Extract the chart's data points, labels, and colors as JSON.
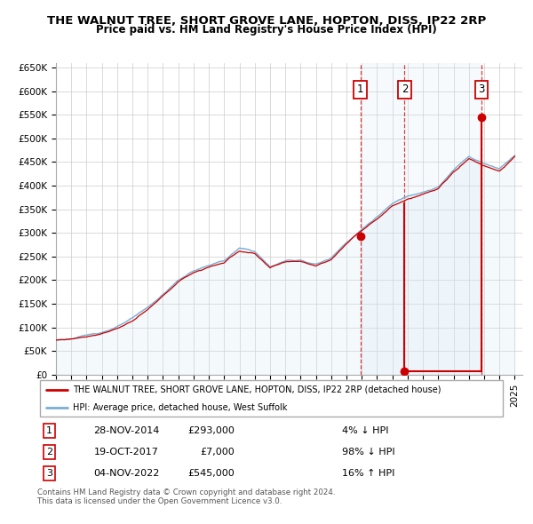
{
  "title": "THE WALNUT TREE, SHORT GROVE LANE, HOPTON, DISS, IP22 2RP",
  "subtitle": "Price paid vs. HM Land Registry's House Price Index (HPI)",
  "ylim": [
    0,
    660000
  ],
  "yticks": [
    0,
    50000,
    100000,
    150000,
    200000,
    250000,
    300000,
    350000,
    400000,
    450000,
    500000,
    550000,
    600000,
    650000
  ],
  "ytick_labels": [
    "£0",
    "£50K",
    "£100K",
    "£150K",
    "£200K",
    "£250K",
    "£300K",
    "£350K",
    "£400K",
    "£450K",
    "£500K",
    "£550K",
    "£600K",
    "£650K"
  ],
  "xlim_start": 1995.0,
  "xlim_end": 2025.5,
  "transaction_line_color": "#cc0000",
  "hpi_line_color": "#7aafd4",
  "hpi_fill_color": "#d6e8f5",
  "background_color": "#ffffff",
  "grid_color": "#cccccc",
  "transactions": [
    {
      "num": 1,
      "date_label": "28-NOV-2014",
      "date_x": 2014.91,
      "price": 293000,
      "hpi_pct": "4% ↓ HPI"
    },
    {
      "num": 2,
      "date_label": "19-OCT-2017",
      "date_x": 2017.8,
      "price": 7000,
      "hpi_pct": "98% ↓ HPI"
    },
    {
      "num": 3,
      "date_label": "04-NOV-2022",
      "date_x": 2022.84,
      "price": 545000,
      "hpi_pct": "16% ↑ HPI"
    }
  ],
  "legend_entries": [
    {
      "label": "THE WALNUT TREE, SHORT GROVE LANE, HOPTON, DISS, IP22 2RP (detached house)",
      "color": "#cc0000",
      "lw": 1.5
    },
    {
      "label": "HPI: Average price, detached house, West Suffolk",
      "color": "#7aafd4",
      "lw": 1.5
    }
  ],
  "table_rows": [
    {
      "num": 1,
      "date": "28-NOV-2014",
      "price": "£293,000",
      "hpi": "4% ↓ HPI"
    },
    {
      "num": 2,
      "date": "19-OCT-2017",
      "price": "£7,000",
      "hpi": "98% ↓ HPI"
    },
    {
      "num": 3,
      "date": "04-NOV-2022",
      "price": "£545,000",
      "hpi": "16% ↑ HPI"
    }
  ],
  "footer": "Contains HM Land Registry data © Crown copyright and database right 2024.\nThis data is licensed under the Open Government Licence v3.0.",
  "hpi_key_years": [
    1995,
    1996,
    1997,
    1998,
    1999,
    2000,
    2001,
    2002,
    2003,
    2004,
    2005,
    2006,
    2007,
    2008,
    2009,
    2010,
    2011,
    2012,
    2013,
    2014,
    2015,
    2016,
    2017,
    2018,
    2019,
    2020,
    2021,
    2022,
    2023,
    2024,
    2025
  ],
  "hpi_key_values": [
    73000,
    76000,
    82000,
    90000,
    102000,
    118000,
    140000,
    168000,
    198000,
    218000,
    230000,
    240000,
    265000,
    258000,
    225000,
    238000,
    240000,
    232000,
    245000,
    280000,
    308000,
    335000,
    362000,
    378000,
    390000,
    400000,
    435000,
    465000,
    450000,
    440000,
    470000
  ],
  "t1_x": 2014.91,
  "t1_y": 293000,
  "t2_x": 2017.8,
  "t2_y": 7000,
  "t3_x": 2022.84,
  "t3_y": 545000,
  "t2_hpi_approx": 362000
}
